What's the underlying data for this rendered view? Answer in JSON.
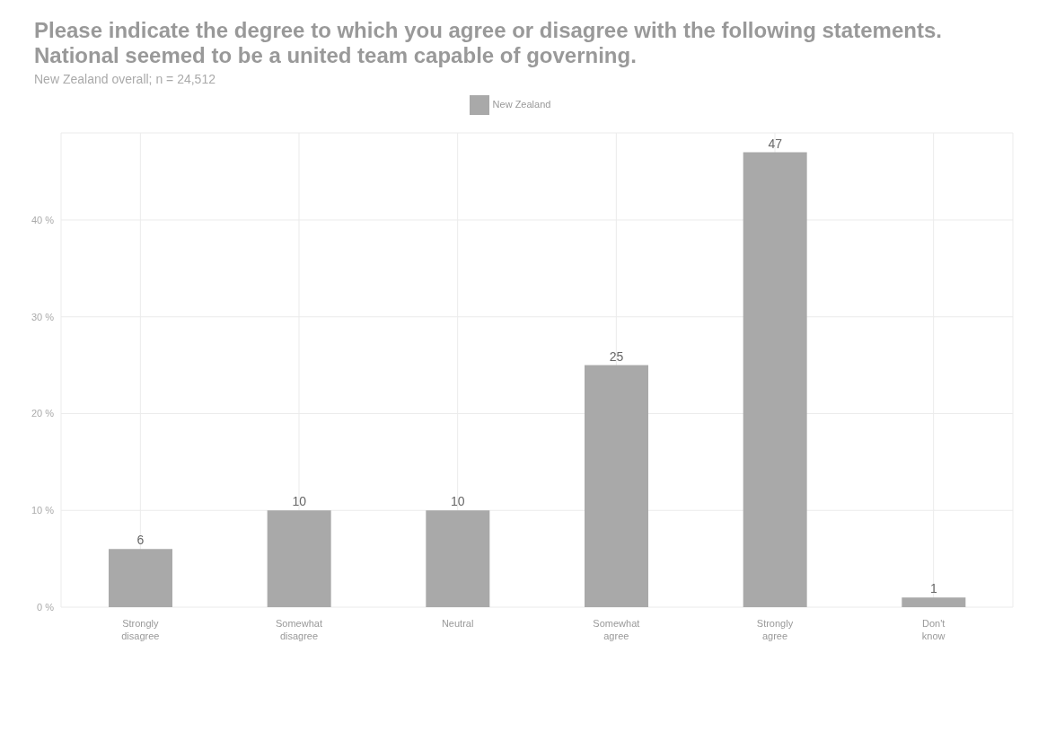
{
  "chart_data": {
    "type": "bar",
    "title": "Please indicate the degree to which you agree or disagree with the following statements. National seemed to be a united team capable of governing.",
    "subtitle": "New Zealand overall; n = 24,512",
    "categories": [
      "Strongly disagree",
      "Somewhat disagree",
      "Neutral",
      "Somewhat agree",
      "Strongly agree",
      "Don't know"
    ],
    "series": [
      {
        "name": "New Zealand",
        "color": "#a9a9a9",
        "values": [
          6,
          10,
          10,
          25,
          47,
          1
        ]
      }
    ],
    "ylim": [
      0,
      49
    ],
    "yticks": [
      {
        "value": 0,
        "label": "0 %"
      },
      {
        "value": 10,
        "label": "10 %"
      },
      {
        "value": 20,
        "label": "20 %"
      },
      {
        "value": 30,
        "label": "30 %"
      },
      {
        "value": 40,
        "label": "40 %"
      }
    ],
    "grid": true,
    "legend": "top",
    "data_labels": true
  }
}
